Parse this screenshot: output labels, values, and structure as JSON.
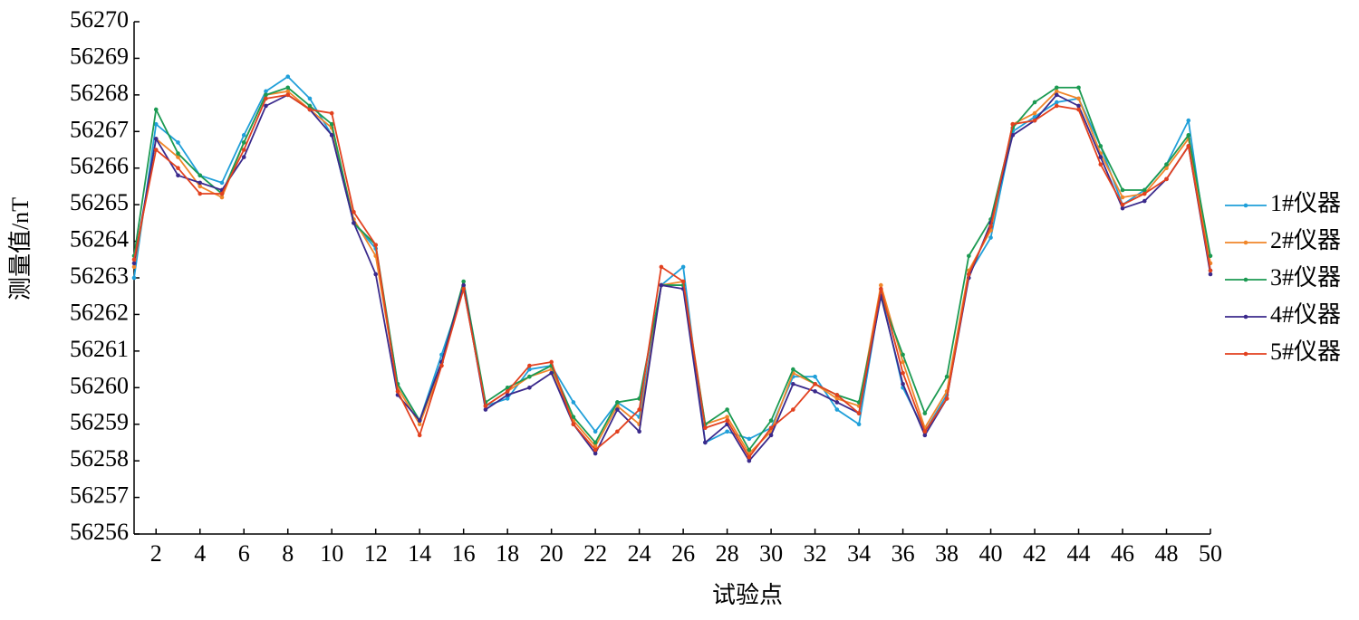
{
  "chart_data": {
    "type": "line",
    "xlabel": "试验点",
    "ylabel": "测量值/nT",
    "x": [
      1,
      2,
      3,
      4,
      5,
      6,
      7,
      8,
      9,
      10,
      11,
      12,
      13,
      14,
      15,
      16,
      17,
      18,
      19,
      20,
      21,
      22,
      23,
      24,
      25,
      26,
      27,
      28,
      29,
      30,
      31,
      32,
      33,
      34,
      35,
      36,
      37,
      38,
      39,
      40,
      41,
      42,
      43,
      44,
      45,
      46,
      47,
      48,
      49,
      50
    ],
    "xlim": [
      1,
      50
    ],
    "xticks": [
      2,
      4,
      6,
      8,
      10,
      12,
      14,
      16,
      18,
      20,
      22,
      24,
      26,
      28,
      30,
      32,
      34,
      36,
      38,
      40,
      42,
      44,
      46,
      48,
      50
    ],
    "ylim": [
      56256,
      56270
    ],
    "yticks": [
      56256,
      56257,
      56258,
      56259,
      56260,
      56261,
      56262,
      56263,
      56264,
      56265,
      56266,
      56267,
      56268,
      56269,
      56270
    ],
    "legend": "right",
    "series": [
      {
        "name": "1#仪器",
        "color": "#1f9fd9",
        "values": [
          56263.0,
          56267.2,
          56266.7,
          56265.8,
          56265.6,
          56266.9,
          56268.1,
          56268.5,
          56267.9,
          56266.9,
          56264.5,
          56263.8,
          56260.1,
          56259.1,
          56260.9,
          56262.7,
          56259.5,
          56259.7,
          56260.5,
          56260.6,
          56259.6,
          56258.8,
          56259.6,
          56259.2,
          56262.8,
          56263.3,
          56258.5,
          56258.8,
          56258.6,
          56258.9,
          56260.3,
          56260.3,
          56259.4,
          56259.0,
          56262.6,
          56260.0,
          56258.8,
          56259.8,
          56263.1,
          56264.1,
          56267.0,
          56267.4,
          56267.8,
          56267.9,
          56266.6,
          56265.0,
          56265.4,
          56266.1,
          56267.3,
          56263.2
        ]
      },
      {
        "name": "2#仪器",
        "color": "#f0862a",
        "values": [
          56263.3,
          56266.8,
          56266.3,
          56265.5,
          56265.2,
          56266.7,
          56268.0,
          56268.1,
          56267.6,
          56267.1,
          56264.6,
          56263.6,
          56260.0,
          56259.0,
          56260.6,
          56262.8,
          56259.5,
          56259.9,
          56260.3,
          56260.5,
          56259.1,
          56258.4,
          56259.5,
          56259.0,
          56262.8,
          56262.9,
          56259.0,
          56259.2,
          56258.2,
          56258.8,
          56260.4,
          56260.1,
          56259.7,
          56259.5,
          56262.8,
          56260.7,
          56258.9,
          56259.9,
          56263.2,
          56264.3,
          56267.2,
          56267.5,
          56268.1,
          56267.9,
          56266.4,
          56265.2,
          56265.3,
          56266.0,
          56266.8,
          56263.4
        ]
      },
      {
        "name": "3#仪器",
        "color": "#1b9a52",
        "values": [
          56263.6,
          56267.6,
          56266.4,
          56265.8,
          56265.3,
          56266.7,
          56268.0,
          56268.2,
          56267.7,
          56267.2,
          56264.5,
          56263.9,
          56260.1,
          56259.1,
          56260.7,
          56262.9,
          56259.6,
          56260.0,
          56260.3,
          56260.6,
          56259.2,
          56258.5,
          56259.6,
          56259.7,
          56262.8,
          56262.8,
          56259.0,
          56259.4,
          56258.3,
          56259.1,
          56260.5,
          56260.1,
          56259.8,
          56259.6,
          56262.5,
          56260.9,
          56259.3,
          56260.3,
          56263.6,
          56264.6,
          56267.1,
          56267.8,
          56268.2,
          56268.2,
          56266.6,
          56265.4,
          56265.4,
          56266.1,
          56266.9,
          56263.6
        ]
      },
      {
        "name": "4#仪器",
        "color": "#3b2a8c",
        "values": [
          56263.4,
          56266.8,
          56265.8,
          56265.6,
          56265.4,
          56266.3,
          56267.7,
          56268.0,
          56267.6,
          56266.9,
          56264.5,
          56263.1,
          56259.8,
          56259.1,
          56260.7,
          56262.8,
          56259.4,
          56259.8,
          56260.0,
          56260.4,
          56259.0,
          56258.2,
          56259.4,
          56258.8,
          56262.8,
          56262.7,
          56258.5,
          56259.0,
          56258.0,
          56258.7,
          56260.1,
          56259.9,
          56259.6,
          56259.3,
          56262.5,
          56260.1,
          56258.7,
          56259.7,
          56263.0,
          56264.5,
          56266.9,
          56267.3,
          56268.0,
          56267.7,
          56266.3,
          56264.9,
          56265.1,
          56265.7,
          56266.6,
          56263.1
        ]
      },
      {
        "name": "5#仪器",
        "color": "#e2411f",
        "values": [
          56263.5,
          56266.5,
          56266.0,
          56265.3,
          56265.3,
          56266.5,
          56267.9,
          56268.0,
          56267.6,
          56267.5,
          56264.8,
          56263.9,
          56259.9,
          56258.7,
          56260.6,
          56262.7,
          56259.5,
          56259.9,
          56260.6,
          56260.7,
          56259.0,
          56258.3,
          56258.8,
          56259.4,
          56263.3,
          56262.9,
          56258.9,
          56259.1,
          56258.1,
          56258.9,
          56259.4,
          56260.1,
          56259.8,
          56259.3,
          56262.7,
          56260.4,
          56258.8,
          56259.7,
          56263.1,
          56264.4,
          56267.2,
          56267.3,
          56267.7,
          56267.6,
          56266.1,
          56265.0,
          56265.3,
          56265.7,
          56266.6,
          56263.2
        ]
      }
    ]
  }
}
